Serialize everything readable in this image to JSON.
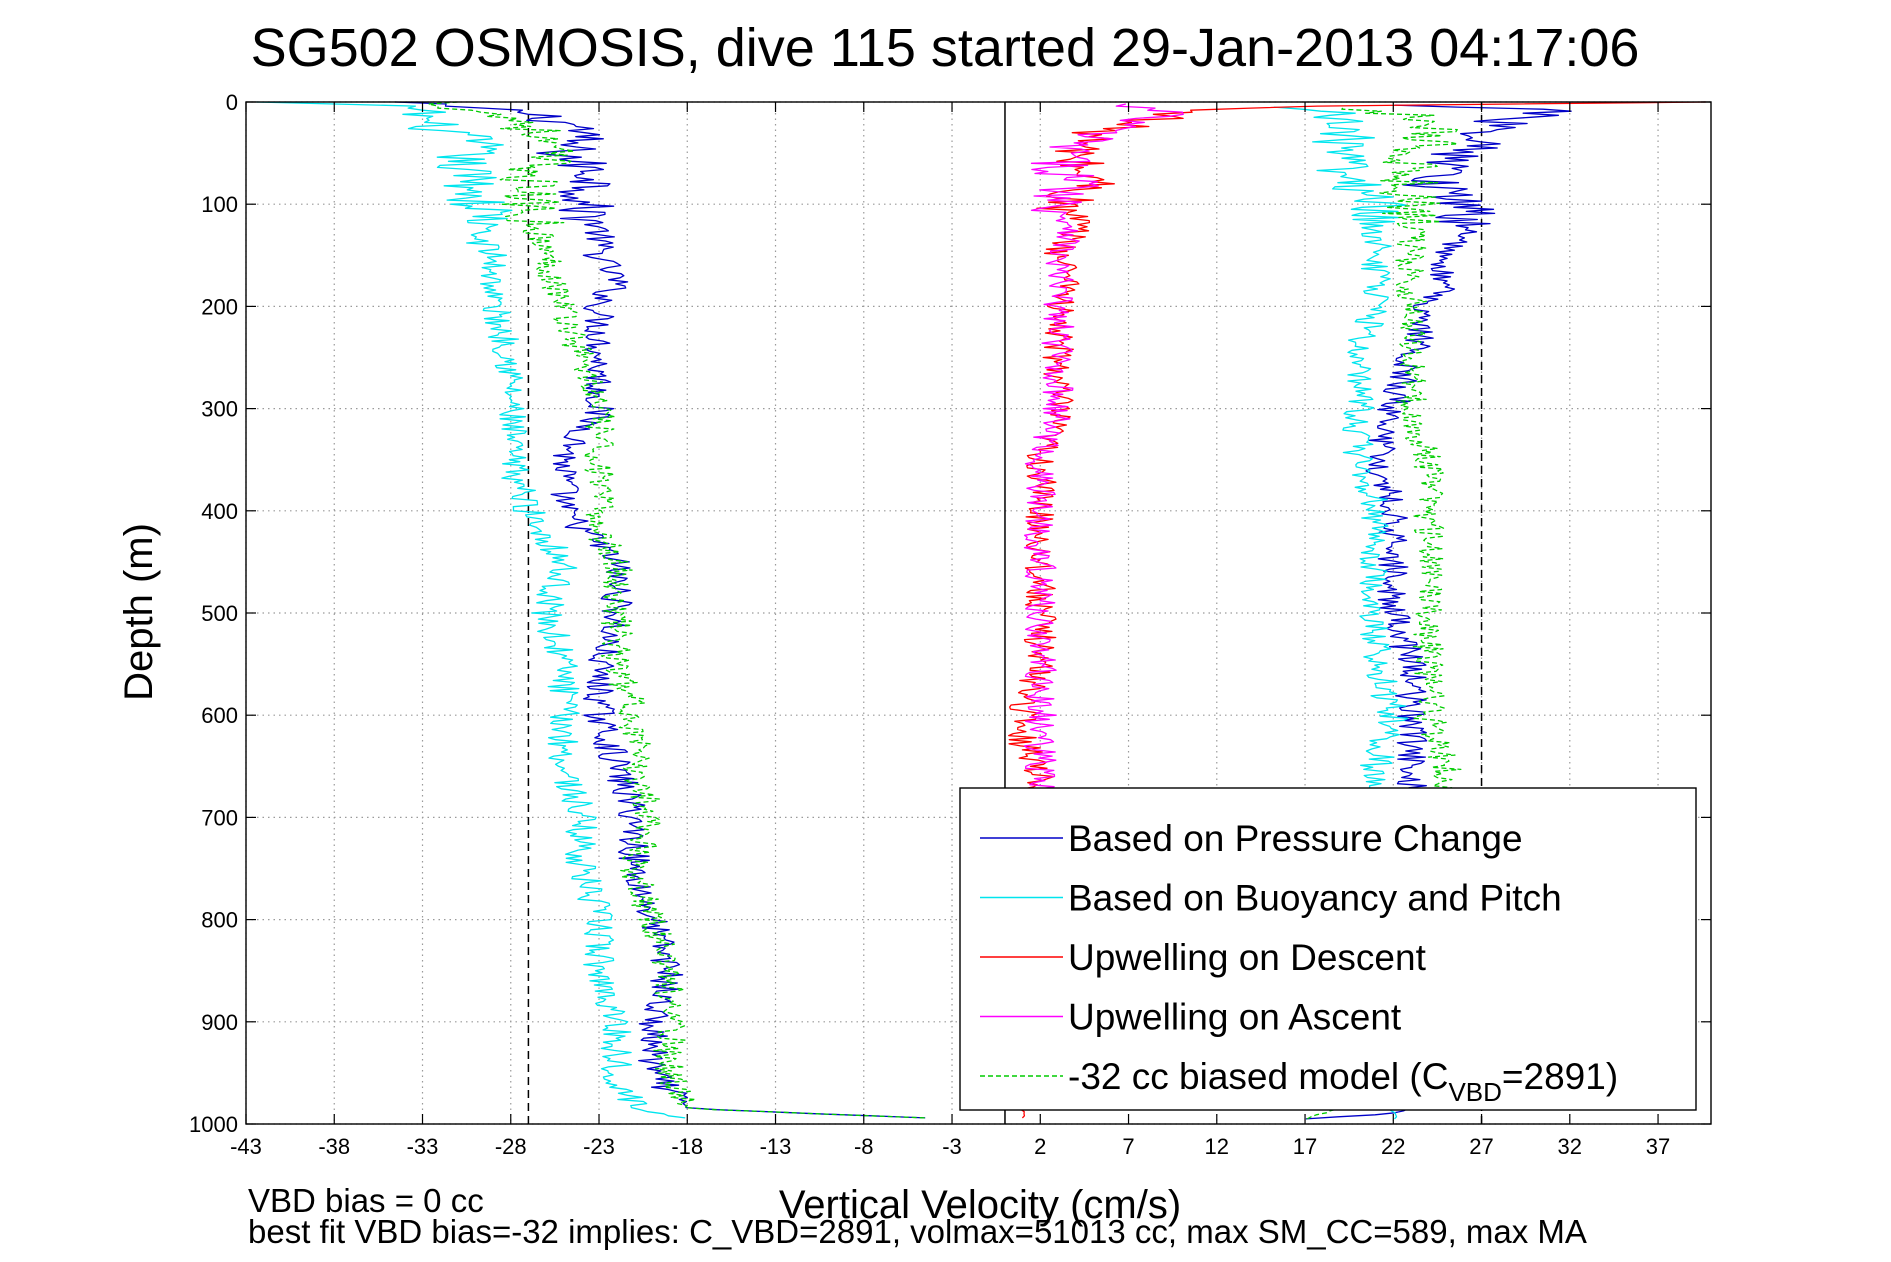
{
  "chart_data": {
    "type": "line",
    "title": "SG502 OSMOSIS, dive 115 started 29-Jan-2013 04:17:06",
    "xlabel": "Vertical Velocity (cm/s)",
    "ylabel": "Depth (m)",
    "xlim": [
      -43,
      40
    ],
    "ylim": [
      0,
      1000
    ],
    "y_reversed": true,
    "grid": true,
    "xticks": [
      -43,
      -38,
      -33,
      -28,
      -23,
      -18,
      -13,
      -8,
      -3,
      2,
      7,
      12,
      17,
      22,
      27,
      32,
      37
    ],
    "yticks": [
      0,
      100,
      200,
      300,
      400,
      500,
      600,
      700,
      800,
      900,
      1000
    ],
    "legend_position": "bottom-right",
    "reference_lines": [
      {
        "x": 0,
        "style": "solid",
        "color": "#000000"
      },
      {
        "x": -27,
        "style": "dashed",
        "color": "#000000"
      },
      {
        "x": 27,
        "style": "dashed",
        "color": "#000000"
      }
    ],
    "series": [
      {
        "name": "Based on Pressure Change",
        "color": "#0000c8",
        "style": "solid",
        "segments": [
          {
            "depth": [
              0,
              10,
              25,
              50,
              75,
              100,
              125,
              150,
              175,
              200,
              250,
              300,
              350,
              400,
              450,
              500,
              550,
              600,
              650,
              700,
              750,
              800,
              850,
              900,
              950,
              985,
              995
            ],
            "velocity": [
              -35,
              -27,
              -24,
              -25,
              -23,
              -24,
              -23,
              -23,
              -22,
              -23,
              -23,
              -23,
              -25,
              -25,
              -22,
              -22,
              -23,
              -23,
              -22,
              -21,
              -21,
              -20,
              -19,
              -20,
              -20,
              -18,
              -3
            ]
          },
          {
            "depth": [
              995,
              990,
              985,
              950,
              900,
              850,
              800,
              750,
              700,
              650,
              600,
              550,
              500,
              450,
              400,
              350,
              300,
              250,
              200,
              175,
              150,
              125,
              100,
              80,
              60,
              40,
              20,
              8,
              2
            ],
            "velocity": [
              17,
              22,
              23,
              23,
              23,
              23,
              23,
              23,
              23,
              23,
              23,
              23,
              22,
              22,
              22,
              21,
              22,
              23,
              24,
              25,
              25,
              26,
              26,
              24,
              25,
              27,
              28,
              31,
              22
            ]
          }
        ]
      },
      {
        "name": "Based on Buoyancy and Pitch",
        "color": "#00e5ee",
        "style": "solid",
        "segments": [
          {
            "depth": [
              0,
              5,
              20,
              40,
              60,
              80,
              100,
              110,
              130,
              150,
              200,
              250,
              300,
              350,
              400,
              450,
              500,
              550,
              600,
              650,
              700,
              750,
              800,
              850,
              900,
              950,
              985,
              995
            ],
            "velocity": [
              -43,
              -33,
              -33,
              -30,
              -31,
              -30,
              -30,
              -29,
              -30,
              -29,
              -29,
              -28,
              -28,
              -28,
              -27,
              -25,
              -26,
              -25,
              -25,
              -25,
              -24,
              -24,
              -23,
              -23,
              -22,
              -22,
              -21,
              -18
            ]
          },
          {
            "depth": [
              995,
              985,
              950,
              900,
              850,
              800,
              750,
              700,
              650,
              600,
              550,
              500,
              450,
              400,
              350,
              300,
              250,
              200,
              150,
              120,
              100,
              80,
              60,
              40,
              20,
              5
            ],
            "velocity": [
              22,
              22,
              22,
              22,
              22,
              21,
              21,
              21,
              21,
              22,
              21,
              21,
              21,
              21,
              20,
              20,
              20,
              21,
              21,
              21,
              21,
              20,
              19,
              19,
              20,
              17
            ]
          }
        ]
      },
      {
        "name": "Upwelling on Descent",
        "color": "#ff0000",
        "style": "solid",
        "segments": [
          {
            "depth": [
              0,
              5,
              20,
              40,
              60,
              80,
              100,
              125,
              150,
              175,
              200,
              225,
              250,
              275,
              300,
              350,
              400,
              450,
              500,
              550,
              600,
              625,
              650,
              700,
              750,
              800,
              850,
              900,
              950,
              985,
              995
            ],
            "velocity": [
              39,
              13,
              7,
              4,
              4,
              5,
              3,
              4,
              3,
              4,
              3,
              3,
              3,
              3,
              3,
              2,
              2,
              2,
              2,
              2,
              1,
              1,
              2,
              2,
              2,
              2,
              2,
              2,
              2,
              1,
              1
            ]
          }
        ]
      },
      {
        "name": "Upwelling on Ascent",
        "color": "#ff00ff",
        "style": "solid",
        "segments": [
          {
            "depth": [
              2,
              10,
              25,
              40,
              60,
              80,
              100,
              125,
              150,
              175,
              200,
              250,
              300,
              350,
              400,
              450,
              500,
              550,
              600,
              625,
              650,
              665,
              680
            ],
            "velocity": [
              6,
              9,
              6,
              4,
              3,
              4,
              3,
              4,
              3,
              3,
              3,
              3,
              3,
              2,
              2,
              2,
              2,
              2,
              2,
              2,
              2,
              2,
              2
            ]
          }
        ]
      },
      {
        "name": "-32 cc biased model (C_VBD=2891)",
        "color": "#00cc00",
        "style": "dashed",
        "segments": [
          {
            "depth": [
              0,
              20,
              50,
              80,
              100,
              150,
              200,
              250,
              300,
              350,
              400,
              420,
              450,
              500,
              550,
              600,
              650,
              700,
              750,
              800,
              850,
              900,
              950,
              985,
              995
            ],
            "velocity": [
              -32,
              -27,
              -26,
              -27,
              -27,
              -26,
              -25,
              -24,
              -23,
              -23,
              -23,
              -23,
              -22,
              -22,
              -22,
              -21,
              -21,
              -20,
              -21,
              -20,
              -19,
              -19,
              -19,
              -18,
              -3
            ]
          },
          {
            "depth": [
              995,
              985,
              950,
              900,
              850,
              800,
              750,
              700,
              650,
              600,
              550,
              500,
              450,
              400,
              350,
              300,
              250,
              200,
              150,
              100,
              80,
              60,
              40,
              20,
              5
            ],
            "velocity": [
              17,
              19,
              23,
              23,
              24,
              24,
              24,
              24,
              25,
              24,
              24,
              24,
              24,
              24,
              24,
              23,
              23,
              23,
              23,
              23,
              23,
              23,
              24,
              25,
              20
            ]
          }
        ]
      }
    ],
    "legend": [
      {
        "label": "Based on Pressure Change",
        "color": "#0000c8",
        "style": "solid"
      },
      {
        "label": "Based on Buoyancy and Pitch",
        "color": "#00e5ee",
        "style": "solid"
      },
      {
        "label": "Upwelling on Descent",
        "color": "#ff0000",
        "style": "solid"
      },
      {
        "label": "Upwelling on Ascent",
        "color": "#ff00ff",
        "style": "solid"
      },
      {
        "label_prefix": "-32 cc biased model (C",
        "label_sub": "VBD",
        "label_suffix": "=2891)",
        "color": "#00cc00",
        "style": "dashed"
      }
    ]
  },
  "footnotes": {
    "line1": "VBD bias = 0 cc",
    "line2": "best fit VBD bias=-32 implies: C_VBD=2891, volmax=51013 cc, max SM_CC=589, max MA"
  }
}
